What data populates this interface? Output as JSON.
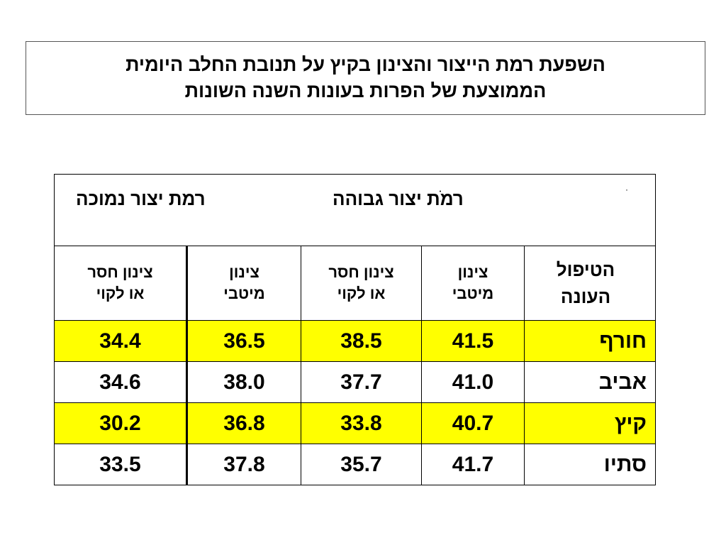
{
  "title": {
    "line1": "השפעת רמת הייצור והצינון בקיץ על תנובת החלב היומית",
    "line2": "הממוצעת של הפרות בעונות השנה השונות"
  },
  "table": {
    "group_headers": {
      "low": "רמת יצור נמוכה",
      "high": "רמֹת יצור גבוהה",
      "mark": "·"
    },
    "sub_headers": {
      "corner": [
        "הטיפול",
        "העונה"
      ],
      "optimal": [
        "צינון",
        "מיטבי"
      ],
      "deficient": [
        "צינון חסר",
        "או לקוי"
      ]
    },
    "rows": [
      {
        "season": "חורף",
        "high_optimal": "41.5",
        "high_deficient": "38.5",
        "low_optimal": "36.5",
        "low_deficient": "34.4",
        "highlight": true
      },
      {
        "season": "אביב",
        "high_optimal": "41.0",
        "high_deficient": "37.7",
        "low_optimal": "38.0",
        "low_deficient": "34.6",
        "highlight": false
      },
      {
        "season": "קיץ",
        "high_optimal": "40.7",
        "high_deficient": "33.8",
        "low_optimal": "36.8",
        "low_deficient": "30.2",
        "highlight": true
      },
      {
        "season": "סתיו",
        "high_optimal": "41.7",
        "high_deficient": "35.7",
        "low_optimal": "37.8",
        "low_deficient": "33.5",
        "highlight": false
      }
    ]
  },
  "colors": {
    "highlight_row": "#ffff00",
    "border": "#000000",
    "title_border": "#555555"
  }
}
